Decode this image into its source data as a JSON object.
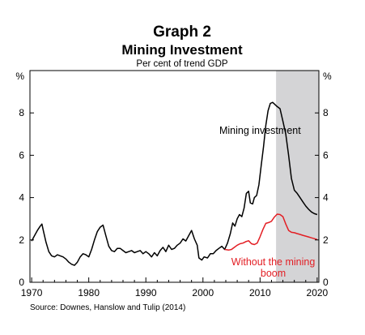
{
  "header": {
    "graph_number": "Graph 2",
    "title": "Mining Investment",
    "subtitle": "Per cent of trend GDP"
  },
  "source": "Source: Downes, Hanslow and Tulip (2014)",
  "colors": {
    "mining": "#000000",
    "without": "#e31e24",
    "shade": "#d4d4d6"
  },
  "chart_data": {
    "type": "line",
    "title": "Mining Investment",
    "subtitle": "Per cent of trend GDP",
    "y_unit": "%",
    "xlim": [
      1969.7,
      2020.3
    ],
    "ylim": [
      0,
      10
    ],
    "x_ticks": [
      1970,
      1980,
      1990,
      2000,
      2010,
      2020
    ],
    "y_ticks": [
      0,
      2,
      4,
      6,
      8
    ],
    "y_unit_labels": {
      "left": "%",
      "right": "%"
    },
    "shaded_region": {
      "x_start": 2012.8,
      "x_end": 2020.3
    },
    "grid": false,
    "series": [
      {
        "name": "Mining investment",
        "color": "#000000",
        "points": [
          [
            1970.0,
            1.95
          ],
          [
            1970.5,
            2.2
          ],
          [
            1971.0,
            2.45
          ],
          [
            1971.5,
            2.65
          ],
          [
            1971.8,
            2.75
          ],
          [
            1972.0,
            2.5
          ],
          [
            1972.5,
            1.9
          ],
          [
            1973.0,
            1.45
          ],
          [
            1973.5,
            1.25
          ],
          [
            1974.0,
            1.2
          ],
          [
            1974.5,
            1.3
          ],
          [
            1975.0,
            1.25
          ],
          [
            1975.5,
            1.2
          ],
          [
            1976.0,
            1.1
          ],
          [
            1976.5,
            0.95
          ],
          [
            1977.0,
            0.85
          ],
          [
            1977.5,
            0.8
          ],
          [
            1978.0,
            0.95
          ],
          [
            1978.5,
            1.2
          ],
          [
            1979.0,
            1.35
          ],
          [
            1979.5,
            1.3
          ],
          [
            1980.0,
            1.2
          ],
          [
            1980.5,
            1.55
          ],
          [
            1981.0,
            2.0
          ],
          [
            1981.5,
            2.4
          ],
          [
            1982.0,
            2.6
          ],
          [
            1982.5,
            2.7
          ],
          [
            1983.0,
            2.2
          ],
          [
            1983.5,
            1.7
          ],
          [
            1984.0,
            1.5
          ],
          [
            1984.5,
            1.45
          ],
          [
            1985.0,
            1.6
          ],
          [
            1985.5,
            1.6
          ],
          [
            1986.0,
            1.5
          ],
          [
            1986.5,
            1.4
          ],
          [
            1987.0,
            1.45
          ],
          [
            1987.5,
            1.5
          ],
          [
            1988.0,
            1.4
          ],
          [
            1988.5,
            1.45
          ],
          [
            1989.0,
            1.5
          ],
          [
            1989.5,
            1.35
          ],
          [
            1990.0,
            1.45
          ],
          [
            1990.5,
            1.35
          ],
          [
            1991.0,
            1.2
          ],
          [
            1991.5,
            1.4
          ],
          [
            1992.0,
            1.25
          ],
          [
            1992.5,
            1.5
          ],
          [
            1993.0,
            1.65
          ],
          [
            1993.5,
            1.45
          ],
          [
            1994.0,
            1.75
          ],
          [
            1994.5,
            1.55
          ],
          [
            1995.0,
            1.6
          ],
          [
            1995.5,
            1.75
          ],
          [
            1996.0,
            1.85
          ],
          [
            1996.5,
            2.05
          ],
          [
            1997.0,
            1.95
          ],
          [
            1997.5,
            2.2
          ],
          [
            1998.0,
            2.45
          ],
          [
            1998.5,
            2.05
          ],
          [
            1999.0,
            1.75
          ],
          [
            1999.3,
            1.15
          ],
          [
            1999.8,
            1.05
          ],
          [
            2000.2,
            1.2
          ],
          [
            2000.8,
            1.15
          ],
          [
            2001.3,
            1.35
          ],
          [
            2001.8,
            1.35
          ],
          [
            2002.3,
            1.5
          ],
          [
            2002.8,
            1.6
          ],
          [
            2003.3,
            1.7
          ],
          [
            2003.8,
            1.55
          ],
          [
            2004.3,
            1.85
          ],
          [
            2004.8,
            2.3
          ],
          [
            2005.2,
            2.8
          ],
          [
            2005.6,
            2.65
          ],
          [
            2006.0,
            3.0
          ],
          [
            2006.4,
            3.2
          ],
          [
            2006.8,
            3.1
          ],
          [
            2007.2,
            3.5
          ],
          [
            2007.6,
            4.2
          ],
          [
            2008.0,
            4.3
          ],
          [
            2008.3,
            3.75
          ],
          [
            2008.7,
            3.7
          ],
          [
            2009.0,
            4.0
          ],
          [
            2009.4,
            4.1
          ],
          [
            2009.8,
            4.6
          ],
          [
            2010.2,
            5.5
          ],
          [
            2010.6,
            6.4
          ],
          [
            2011.0,
            7.4
          ],
          [
            2011.4,
            8.1
          ],
          [
            2011.8,
            8.45
          ],
          [
            2012.2,
            8.5
          ],
          [
            2012.6,
            8.4
          ],
          [
            2013.0,
            8.3
          ],
          [
            2013.5,
            8.2
          ],
          [
            2014.0,
            7.6
          ],
          [
            2014.5,
            7.0
          ],
          [
            2015.0,
            6.0
          ],
          [
            2015.5,
            4.9
          ],
          [
            2016.0,
            4.35
          ],
          [
            2016.5,
            4.2
          ],
          [
            2017.0,
            4.0
          ],
          [
            2017.5,
            3.8
          ],
          [
            2018.0,
            3.6
          ],
          [
            2018.5,
            3.45
          ],
          [
            2019.0,
            3.32
          ],
          [
            2019.5,
            3.24
          ],
          [
            2020.0,
            3.2
          ]
        ]
      },
      {
        "name": "Without the mining boom",
        "color": "#e31e24",
        "points": [
          [
            2003.8,
            1.55
          ],
          [
            2004.5,
            1.52
          ],
          [
            2005.0,
            1.55
          ],
          [
            2005.5,
            1.65
          ],
          [
            2006.0,
            1.75
          ],
          [
            2006.5,
            1.82
          ],
          [
            2007.0,
            1.85
          ],
          [
            2007.5,
            1.92
          ],
          [
            2008.0,
            1.96
          ],
          [
            2008.5,
            1.82
          ],
          [
            2009.0,
            1.78
          ],
          [
            2009.5,
            1.85
          ],
          [
            2010.0,
            2.15
          ],
          [
            2010.5,
            2.5
          ],
          [
            2011.0,
            2.78
          ],
          [
            2011.5,
            2.82
          ],
          [
            2012.0,
            2.88
          ],
          [
            2012.5,
            3.08
          ],
          [
            2013.0,
            3.22
          ],
          [
            2013.5,
            3.2
          ],
          [
            2014.0,
            3.1
          ],
          [
            2014.5,
            2.75
          ],
          [
            2015.0,
            2.45
          ],
          [
            2015.5,
            2.36
          ],
          [
            2016.0,
            2.34
          ],
          [
            2016.5,
            2.3
          ],
          [
            2017.0,
            2.26
          ],
          [
            2017.5,
            2.22
          ],
          [
            2018.0,
            2.18
          ],
          [
            2018.5,
            2.14
          ],
          [
            2019.0,
            2.1
          ],
          [
            2019.5,
            2.06
          ],
          [
            2020.0,
            2.02
          ]
        ]
      }
    ]
  }
}
